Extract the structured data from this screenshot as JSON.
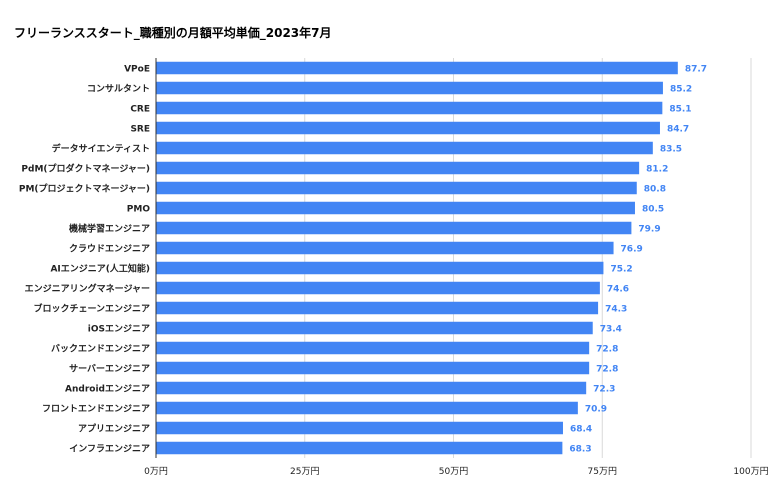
{
  "chart_data": {
    "type": "bar",
    "orientation": "horizontal",
    "title": "フリーランススタート_職種別の月額平均単価_2023年7月",
    "categories": [
      "VPoE",
      "コンサルタント",
      "CRE",
      "SRE",
      "データサイエンティスト",
      "PdM(プロダクトマネージャー)",
      "PM(プロジェクトマネージャー)",
      "PMO",
      "機械学習エンジニア",
      "クラウドエンジニア",
      "AIエンジニア(人工知能)",
      "エンジニアリングマネージャー",
      "ブロックチェーンエンジニア",
      "iOSエンジニア",
      "バックエンドエンジニア",
      "サーバーエンジニア",
      "Androidエンジニア",
      "フロントエンドエンジニア",
      "アプリエンジニア",
      "インフラエンジニア"
    ],
    "values": [
      87.7,
      85.2,
      85.1,
      84.7,
      83.5,
      81.2,
      80.8,
      80.5,
      79.9,
      76.9,
      75.2,
      74.6,
      74.3,
      73.4,
      72.8,
      72.8,
      72.3,
      70.9,
      68.4,
      68.3
    ],
    "data_labels": [
      "87.7",
      "85.2",
      "85.1",
      "84.7",
      "83.5",
      "81.2",
      "80.8",
      "80.5",
      "79.9",
      "76.9",
      "75.2",
      "74.6",
      "74.3",
      "73.4",
      "72.8",
      "72.8",
      "72.3",
      "70.9",
      "68.4",
      "68.3"
    ],
    "xlim": [
      0,
      100
    ],
    "x_ticks": [
      0,
      25,
      50,
      75,
      100
    ],
    "x_tick_labels": [
      "0万円",
      "25万円",
      "50万円",
      "75万円",
      "100万円"
    ],
    "grid": true,
    "legend": "none",
    "colors": {
      "bar": "#4285f4",
      "data_label": "#4285f4",
      "grid": "#d9d9d9",
      "axis": "#333333",
      "text": "#222222"
    }
  }
}
